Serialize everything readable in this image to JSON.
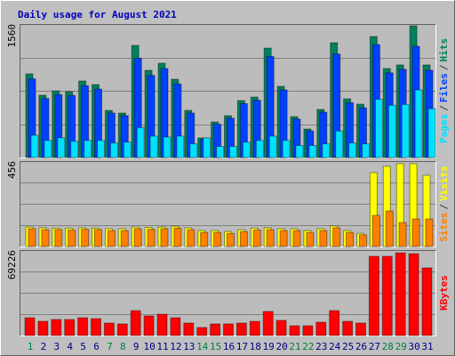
{
  "title": "Daily usage for August 2021",
  "legend_separator": "/",
  "chart_data": [
    {
      "type": "bar",
      "ylim": [
        0,
        1560
      ],
      "yticks": [
        1560
      ],
      "series": [
        {
          "name": "Pages",
          "color": "#00e0ff",
          "values": [
            260,
            200,
            230,
            190,
            200,
            200,
            170,
            180,
            350,
            250,
            240,
            250,
            160,
            230,
            130,
            130,
            180,
            200,
            250,
            200,
            140,
            140,
            160,
            310,
            170,
            160,
            680,
            610,
            620,
            790,
            570
          ]
        },
        {
          "name": "Files",
          "color": "#0040ff",
          "values": [
            920,
            690,
            735,
            725,
            840,
            800,
            520,
            490,
            1160,
            960,
            1040,
            860,
            520,
            215,
            390,
            460,
            630,
            670,
            1180,
            790,
            450,
            310,
            530,
            1210,
            640,
            580,
            1320,
            990,
            1030,
            1300,
            1020
          ]
        },
        {
          "name": "Hits",
          "color": "#00805c",
          "values": [
            978,
            728,
            780,
            770,
            894,
            853,
            551,
            520,
            1310,
            1019,
            1102,
            915,
            551,
            229,
            416,
            489,
            666,
            707,
            1279,
            832,
            478,
            333,
            562,
            1342,
            686,
            624,
            1414,
            1040,
            1082,
            1539,
            1082
          ]
        }
      ]
    },
    {
      "type": "bar",
      "ylim": [
        0,
        456
      ],
      "yticks": [
        456
      ],
      "series": [
        {
          "name": "Sites",
          "color": "#ff8000",
          "values": [
            95,
            90,
            90,
            88,
            92,
            90,
            85,
            85,
            95,
            92,
            95,
            98,
            90,
            75,
            75,
            70,
            80,
            88,
            90,
            85,
            85,
            75,
            85,
            100,
            75,
            62,
            166,
            190,
            128,
            147,
            147
          ]
        },
        {
          "name": "Visits",
          "color": "#ffff00",
          "values": [
            104,
            100,
            98,
            98,
            100,
            98,
            95,
            95,
            104,
            102,
            104,
            108,
            100,
            85,
            85,
            80,
            90,
            98,
            100,
            95,
            95,
            85,
            95,
            110,
            85,
            70,
            394,
            428,
            442,
            442,
            380
          ]
        }
      ]
    },
    {
      "type": "bar",
      "ylim": [
        0,
        69226
      ],
      "yticks": [
        69226
      ],
      "categories": [
        "1",
        "2",
        "3",
        "4",
        "5",
        "6",
        "7",
        "8",
        "9",
        "10",
        "11",
        "12",
        "13",
        "14",
        "15",
        "16",
        "17",
        "18",
        "19",
        "20",
        "21",
        "22",
        "23",
        "24",
        "25",
        "26",
        "27",
        "28",
        "29",
        "30",
        "31"
      ],
      "category_colors": [
        "#008040",
        "#000080",
        "#000080",
        "#000080",
        "#000080",
        "#000080",
        "#008040",
        "#008040",
        "#000080",
        "#000080",
        "#000080",
        "#000080",
        "#000080",
        "#008040",
        "#008040",
        "#000080",
        "#000080",
        "#000080",
        "#000080",
        "#000080",
        "#008040",
        "#008040",
        "#000080",
        "#000080",
        "#000080",
        "#000080",
        "#000080",
        "#008040",
        "#008040",
        "#000080",
        "#000080"
      ],
      "series": [
        {
          "name": "KBytes",
          "color": "#ff0000",
          "values": [
            14420,
            11540,
            13000,
            13000,
            14420,
            13700,
            10100,
            9400,
            20200,
            15900,
            17300,
            14400,
            10100,
            6500,
            9400,
            9400,
            10100,
            11500,
            19500,
            12300,
            7900,
            7900,
            10800,
            20200,
            11500,
            10100,
            64200,
            64200,
            67000,
            66300,
            54800
          ]
        }
      ]
    }
  ]
}
